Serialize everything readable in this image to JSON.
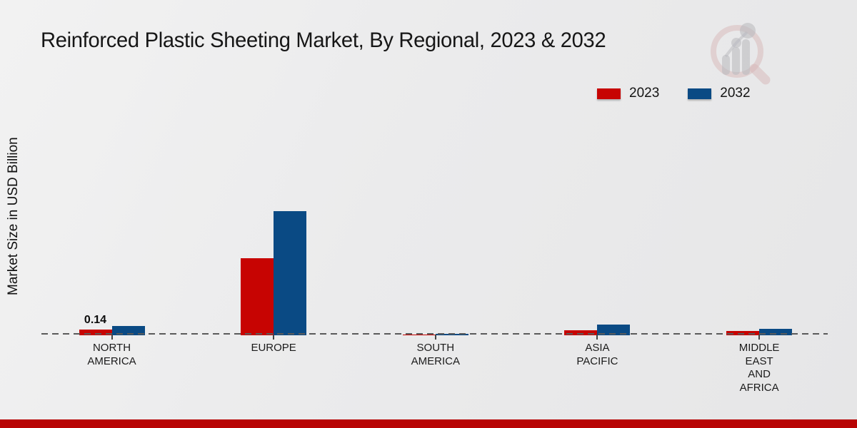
{
  "title": "Reinforced Plastic Sheeting Market, By Regional, 2023 & 2032",
  "y_axis_label": "Market Size in USD Billion",
  "legend": {
    "position": "top-right",
    "items": [
      {
        "label": "2023",
        "color": "#c70402"
      },
      {
        "label": "2032",
        "color": "#0a4a84"
      }
    ]
  },
  "footer": {
    "bar_color": "#b80404"
  },
  "watermark": {
    "icon": "market-research-magnifier-bars-logo"
  },
  "chart_data": {
    "type": "bar",
    "title": "Reinforced Plastic Sheeting Market, By Regional, 2023 & 2032",
    "ylabel": "Market Size in USD Billion",
    "xlabel": "",
    "unit": "USD Billion",
    "categories": [
      "NORTH AMERICA",
      "EUROPE",
      "SOUTH AMERICA",
      "ASIA PACIFIC",
      "MIDDLE EAST AND AFRICA"
    ],
    "category_label_lines": [
      [
        "NORTH",
        "AMERICA"
      ],
      [
        "EUROPE"
      ],
      [
        "SOUTH",
        "AMERICA"
      ],
      [
        "ASIA",
        "PACIFIC"
      ],
      [
        "MIDDLE",
        "EAST",
        "AND",
        "AFRICA"
      ]
    ],
    "series": [
      {
        "name": "2023",
        "color": "#c70402",
        "values": [
          0.14,
          1.9,
          0.02,
          0.13,
          0.1
        ]
      },
      {
        "name": "2032",
        "color": "#0a4a84",
        "values": [
          0.22,
          3.05,
          0.03,
          0.26,
          0.16
        ]
      }
    ],
    "bar_labels": [
      {
        "category_index": 0,
        "series_index": 0,
        "text": "0.14"
      }
    ],
    "baseline": 0,
    "grid": "off",
    "zero_line_style": "dashed",
    "legend_position": "top-right"
  }
}
